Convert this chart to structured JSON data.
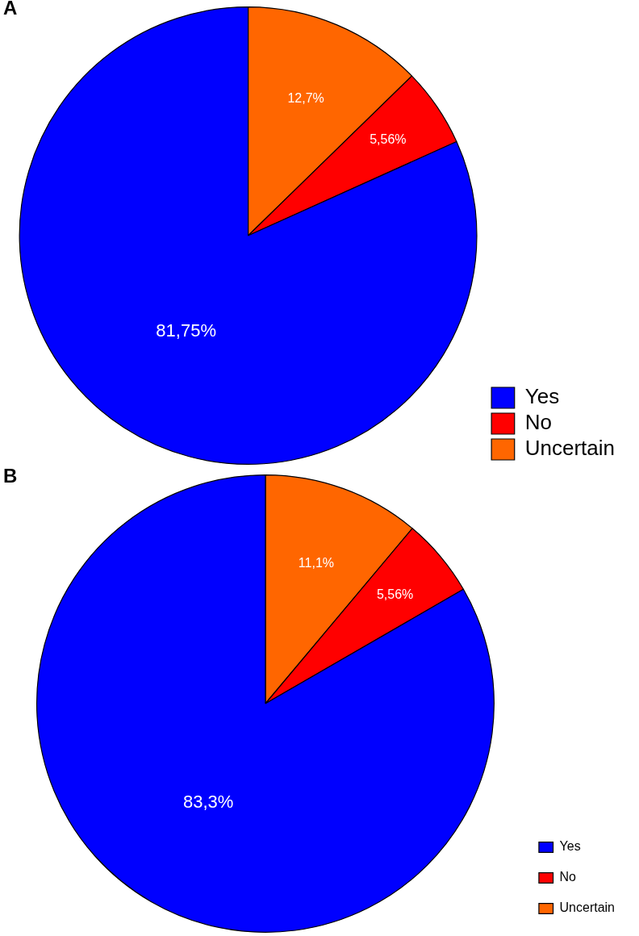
{
  "chart_data": [
    {
      "type": "pie",
      "title": "A",
      "categories": [
        "Yes",
        "No",
        "Uncertain"
      ],
      "values": [
        81.75,
        5.56,
        12.7
      ],
      "value_labels": [
        "81,75%",
        "5,56%",
        "12,7%"
      ],
      "colors": [
        "#0000ff",
        "#ff0000",
        "#ff6600"
      ],
      "legend": "bottom right"
    },
    {
      "type": "pie",
      "title": "B",
      "categories": [
        "Yes",
        "No",
        "Uncertain"
      ],
      "values": [
        83.3,
        5.56,
        11.1
      ],
      "value_labels": [
        "83,3%",
        "5,56%",
        "11,1%"
      ],
      "colors": [
        "#0000ff",
        "#ff0000",
        "#ff6600"
      ],
      "legend": "bottom right"
    }
  ]
}
